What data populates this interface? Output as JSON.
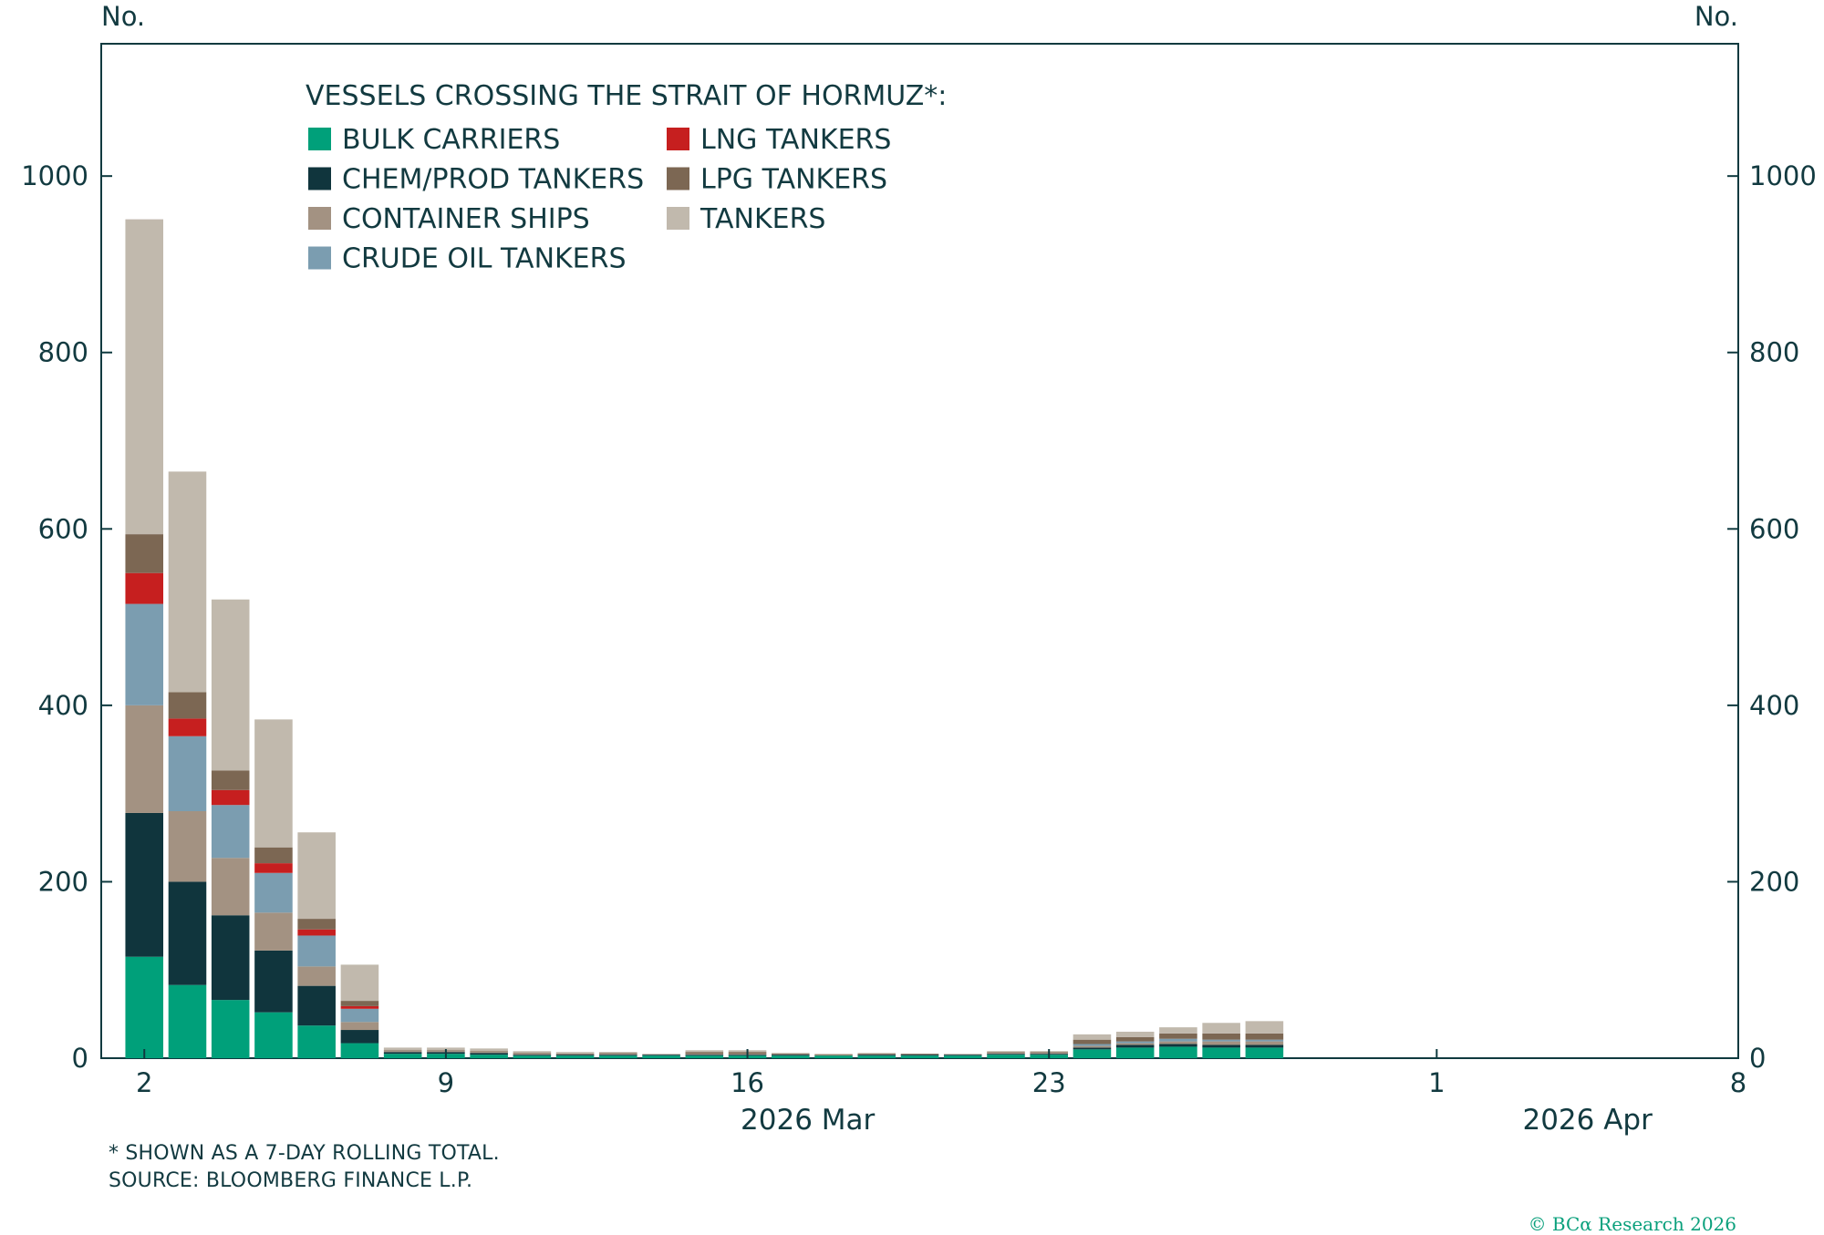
{
  "chart_data": {
    "type": "bar",
    "stacked": true,
    "title": "VESSELS CROSSING THE STRAIT OF HORMUZ*:",
    "left_axis_label": "No.",
    "right_axis_label": "No.",
    "ylim": [
      0,
      1150
    ],
    "yticks": [
      0,
      200,
      400,
      600,
      800,
      1000
    ],
    "x_day_range": [
      1,
      38
    ],
    "x_ticks": [
      {
        "day": 2,
        "label": "2"
      },
      {
        "day": 9,
        "label": "9"
      },
      {
        "day": 16,
        "label": "16"
      },
      {
        "day": 23,
        "label": "23"
      },
      {
        "day": 32,
        "label": "1"
      },
      {
        "day": 39,
        "label": "8"
      }
    ],
    "month_labels": [
      {
        "day": 17.4,
        "label": "2026 Mar"
      },
      {
        "day": 35.5,
        "label": "2026 Apr"
      }
    ],
    "days": [
      2,
      3,
      4,
      5,
      6,
      7,
      8,
      9,
      10,
      11,
      12,
      13,
      14,
      15,
      16,
      17,
      18,
      19,
      20,
      21,
      22,
      23,
      24,
      25,
      26,
      27,
      28,
      29
    ],
    "series": [
      {
        "name": "BULK CARRIERS",
        "color": "#00a07a",
        "values": [
          115,
          83,
          66,
          52,
          37,
          17,
          5,
          5,
          4,
          3,
          3,
          3,
          3,
          3,
          3,
          3,
          3,
          3,
          3,
          3,
          4,
          4,
          10,
          12,
          13,
          12,
          12,
          0
        ]
      },
      {
        "name": "CHEM/PROD TANKERS",
        "color": "#10353d",
        "values": [
          163,
          117,
          96,
          70,
          45,
          15,
          2,
          2,
          2,
          1,
          1,
          1,
          1,
          1,
          1,
          1,
          0,
          1,
          1,
          1,
          1,
          1,
          2,
          3,
          3,
          3,
          3,
          0
        ]
      },
      {
        "name": "CONTAINER SHIPS",
        "color": "#a39282",
        "values": [
          122,
          80,
          65,
          43,
          22,
          9,
          1,
          1,
          1,
          1,
          0,
          1,
          0,
          1,
          1,
          0,
          0,
          0,
          0,
          0,
          1,
          1,
          2,
          2,
          3,
          4,
          4,
          0
        ]
      },
      {
        "name": "CRUDE OIL TANKERS",
        "color": "#7b9db0",
        "values": [
          115,
          85,
          60,
          45,
          35,
          15,
          0,
          0,
          0,
          0,
          0,
          0,
          0,
          0,
          0,
          0,
          0,
          0,
          0,
          0,
          0,
          0,
          2,
          2,
          3,
          2,
          2,
          0
        ]
      },
      {
        "name": "LNG TANKERS",
        "color": "#c61f1f",
        "values": [
          35,
          20,
          17,
          11,
          7,
          3,
          0,
          0,
          0,
          0,
          0,
          0,
          0,
          0,
          0,
          0,
          0,
          0,
          0,
          0,
          0,
          0,
          0,
          0,
          0,
          0,
          0,
          0
        ]
      },
      {
        "name": "LPG TANKERS",
        "color": "#7c6753",
        "values": [
          44,
          30,
          22,
          18,
          12,
          6,
          1,
          1,
          1,
          1,
          1,
          1,
          0,
          2,
          2,
          1,
          1,
          1,
          1,
          0,
          1,
          1,
          5,
          5,
          6,
          7,
          7,
          0
        ]
      },
      {
        "name": "TANKERS",
        "color": "#c1b9ad",
        "values": [
          357,
          250,
          194,
          145,
          98,
          41,
          3,
          3,
          3,
          2,
          2,
          1,
          1,
          2,
          2,
          1,
          1,
          1,
          0,
          1,
          1,
          1,
          6,
          6,
          7,
          12,
          14,
          0
        ]
      }
    ],
    "legend": {
      "placement": "top-left",
      "columns": [
        [
          "BULK CARRIERS",
          "CHEM/PROD TANKERS",
          "CONTAINER SHIPS",
          "CRUDE OIL TANKERS"
        ],
        [
          "LNG TANKERS",
          "LPG TANKERS",
          "TANKERS"
        ]
      ]
    }
  },
  "footnote": "* SHOWN AS A 7-DAY ROLLING TOTAL.",
  "source": "SOURCE: BLOOMBERG FINANCE L.P.",
  "copyright": "© BCα Research 2026"
}
